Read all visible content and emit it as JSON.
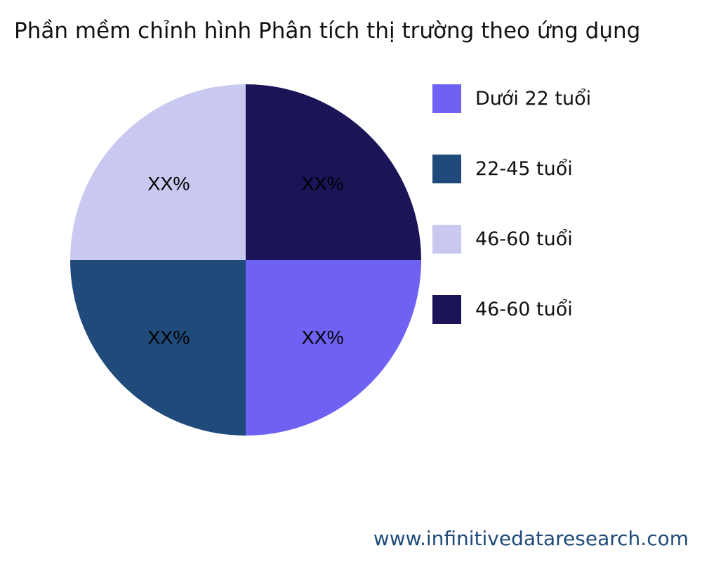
{
  "chart_data": {
    "type": "pie",
    "title": "Phần mềm chỉnh hình Phân tích thị trường theo ứng dụng",
    "slices": [
      {
        "name": "Dưới 22 tuổi",
        "value": 25,
        "label": "XX%",
        "color": "#6f61f2"
      },
      {
        "name": "22-45 tuổi",
        "value": 25,
        "label": "XX%",
        "color": "#1f4a7a"
      },
      {
        "name": "46-60 tuổi",
        "value": 25,
        "label": "XX%",
        "color": "#c8c8f0"
      },
      {
        "name": "46-60 tuổi",
        "value": 25,
        "label": "XX%",
        "color": "#1b1558"
      }
    ],
    "legend_position": "right"
  },
  "footer": "www.infinitivedataresearch.com"
}
